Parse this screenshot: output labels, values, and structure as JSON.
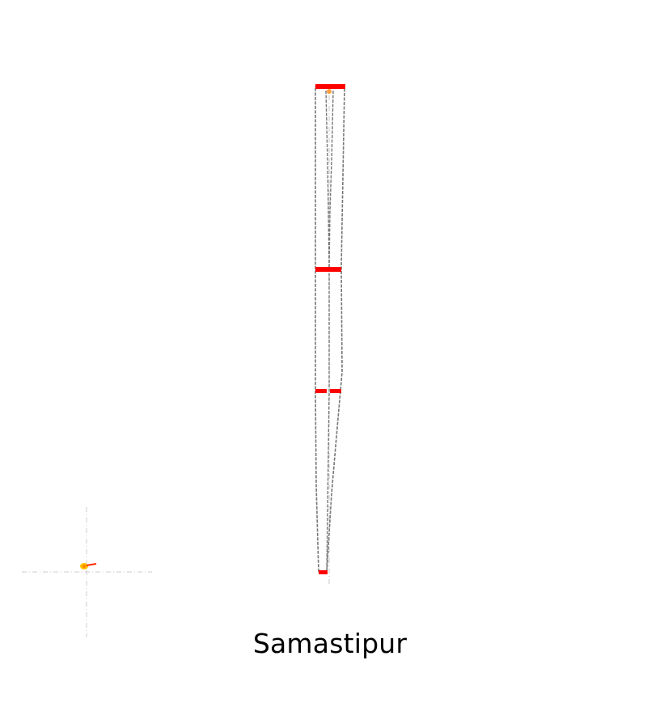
{
  "caption": "Samastipur",
  "colors": {
    "outline": "#777777",
    "axis": "#c8c8c8",
    "level_marker": "#ff0000",
    "top_marker": "#ffa040",
    "locator_outer": "#ffc400",
    "locator_inner": "#ff8800",
    "locator_pointer": "#ff2a00"
  }
}
